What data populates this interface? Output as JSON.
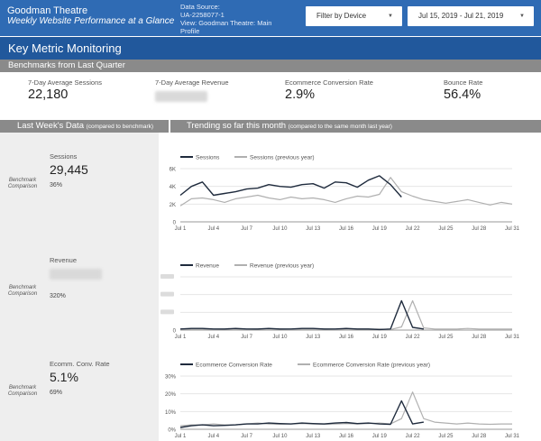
{
  "header": {
    "title": "Goodman Theatre",
    "subtitle": "Weekly Website Performance at a Glance",
    "source_lines": [
      "Data Source:",
      "UA-2258077-1",
      "View: Goodman Theatre: Main",
      "Profile"
    ],
    "filter_label": "Filter by Device",
    "date_range": "Jul 15, 2019 - Jul 21, 2019"
  },
  "section_title": "Key Metric Monitoring",
  "benchmarks": {
    "title": "Benchmarks from Last Quarter",
    "kpis": [
      {
        "label": "7-Day Average Sessions",
        "value": "22,180",
        "hidden": false
      },
      {
        "label": "7-Day Average Revenue",
        "value": "",
        "hidden": true
      },
      {
        "label": "Ecommerce Conversion Rate",
        "value": "2.9%",
        "hidden": false
      },
      {
        "label": "Bounce Rate",
        "value": "56.4%",
        "hidden": false
      }
    ]
  },
  "left_section": {
    "title": "Last Week's Data",
    "note": "(compared to benchmark)"
  },
  "right_section": {
    "title": "Trending so far this month",
    "note": "(compared to the same month last year)"
  },
  "benchmark_label": [
    "Benchmark",
    "Comparison"
  ],
  "metrics": [
    {
      "label": "Sessions",
      "value": "29,445",
      "pct": "36%",
      "hidden": false
    },
    {
      "label": "Revenue",
      "value": "",
      "pct": "320%",
      "hidden": true
    },
    {
      "label": "Ecomm. Conv. Rate",
      "value": "5.1%",
      "pct": "69%",
      "hidden": false
    }
  ],
  "x_ticks": [
    "Jul 1",
    "Jul 4",
    "Jul 7",
    "Jul 10",
    "Jul 13",
    "Jul 16",
    "Jul 19",
    "Jul 22",
    "Jul 25",
    "Jul 28",
    "Jul 31"
  ],
  "colors": {
    "header_bg": "#2f6bb4",
    "title_bar": "#21589c",
    "section_bar": "#8a8a8a",
    "current": "#1f2b3d",
    "previous": "#b0b0b0"
  },
  "chart_data": [
    {
      "type": "line",
      "x": [
        1,
        2,
        3,
        4,
        5,
        6,
        7,
        8,
        9,
        10,
        11,
        12,
        13,
        14,
        15,
        16,
        17,
        18,
        19,
        20,
        21,
        22,
        23,
        24,
        25,
        26,
        27,
        28,
        29,
        30,
        31
      ],
      "ylim": [
        0,
        6000
      ],
      "yticks": [
        "0",
        "2K",
        "4K",
        "6K"
      ],
      "hide_y_labels": false,
      "series": [
        {
          "name": "Sessions",
          "values": [
            3000,
            4000,
            4500,
            3000,
            3200,
            3400,
            3700,
            3800,
            4200,
            4000,
            3900,
            4200,
            4300,
            3800,
            4500,
            4400,
            3900,
            4700,
            5200,
            4200,
            2800,
            null,
            null,
            null,
            null,
            null,
            null,
            null,
            null,
            null,
            null
          ]
        },
        {
          "name": "Sessions (previous year)",
          "values": [
            1800,
            2600,
            2700,
            2500,
            2200,
            2600,
            2800,
            3000,
            2700,
            2500,
            2800,
            2600,
            2700,
            2500,
            2200,
            2600,
            2900,
            2800,
            3100,
            5000,
            3400,
            2900,
            2500,
            2300,
            2100,
            2300,
            2500,
            2200,
            1900,
            2200,
            2000
          ]
        }
      ]
    },
    {
      "type": "line",
      "x": [
        1,
        2,
        3,
        4,
        5,
        6,
        7,
        8,
        9,
        10,
        11,
        12,
        13,
        14,
        15,
        16,
        17,
        18,
        19,
        20,
        21,
        22,
        23,
        24,
        25,
        26,
        27,
        28,
        29,
        30,
        31
      ],
      "ylim": [
        0,
        100
      ],
      "yticks": [
        "0",
        "",
        "",
        ""
      ],
      "hide_y_labels": true,
      "series": [
        {
          "name": "Revenue",
          "values": [
            2,
            3,
            3,
            2,
            2,
            3,
            2,
            2,
            3,
            2,
            2,
            3,
            3,
            2,
            2,
            3,
            2,
            2,
            1,
            2,
            55,
            5,
            2,
            null,
            null,
            null,
            null,
            null,
            null,
            null,
            null
          ]
        },
        {
          "name": "Revenue (previous year)",
          "values": [
            1,
            2,
            2,
            1,
            2,
            2,
            1,
            2,
            2,
            2,
            1,
            2,
            2,
            2,
            1,
            2,
            2,
            2,
            2,
            1,
            6,
            55,
            4,
            2,
            2,
            2,
            3,
            2,
            2,
            2,
            2
          ]
        }
      ]
    },
    {
      "type": "line",
      "x": [
        1,
        2,
        3,
        4,
        5,
        6,
        7,
        8,
        9,
        10,
        11,
        12,
        13,
        14,
        15,
        16,
        17,
        18,
        19,
        20,
        21,
        22,
        23,
        24,
        25,
        26,
        27,
        28,
        29,
        30,
        31
      ],
      "ylim": [
        0,
        30
      ],
      "yticks": [
        "0%",
        "10%",
        "20%",
        "30%"
      ],
      "hide_y_labels": false,
      "series": [
        {
          "name": "Ecommerce Conversion Rate",
          "values": [
            1,
            2,
            2.5,
            2,
            2.2,
            2.5,
            3,
            3,
            3.5,
            3.2,
            3,
            3.5,
            3.2,
            3,
            3.5,
            3.8,
            3.2,
            3.5,
            3,
            2.8,
            16,
            3,
            4,
            null,
            null,
            null,
            null,
            null,
            null,
            null,
            null
          ]
        },
        {
          "name": "Ecommerce Conversion Rate (previous year)",
          "values": [
            2,
            2.5,
            2.5,
            3,
            2.5,
            2.5,
            3,
            3.5,
            3,
            2.8,
            3,
            3.2,
            3,
            2.8,
            3,
            3.2,
            3,
            3.2,
            3.5,
            3,
            6,
            21,
            6,
            4,
            3.5,
            3,
            3.5,
            3,
            2.8,
            3,
            3
          ]
        }
      ]
    }
  ]
}
